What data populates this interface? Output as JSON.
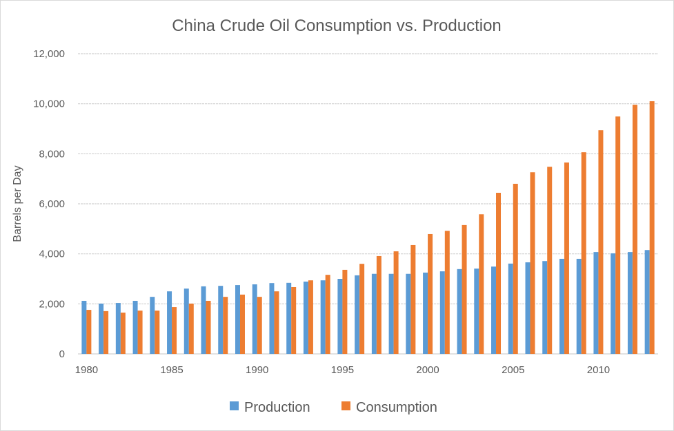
{
  "chart_data": {
    "type": "bar",
    "title": "China Crude Oil Consumption vs. Production",
    "xlabel": "",
    "ylabel": "Barrels per Day",
    "ylim": [
      0,
      12000
    ],
    "yticks": [
      "0",
      "2,000",
      "4,000",
      "6,000",
      "8,000",
      "10,000",
      "12,000"
    ],
    "ytick_values": [
      0,
      2000,
      4000,
      6000,
      8000,
      10000,
      12000
    ],
    "xtick_labels": [
      "1980",
      "1985",
      "1990",
      "1995",
      "2000",
      "2005",
      "2010"
    ],
    "grid": true,
    "legend_position": "bottom",
    "categories": [
      1980,
      1981,
      1982,
      1983,
      1984,
      1985,
      1986,
      1987,
      1988,
      1989,
      1990,
      1991,
      1992,
      1993,
      1994,
      1995,
      1996,
      1997,
      1998,
      1999,
      2000,
      2001,
      2002,
      2003,
      2004,
      2005,
      2006,
      2007,
      2008,
      2009,
      2010,
      2011,
      2012,
      2013
    ],
    "series": [
      {
        "name": "Production",
        "color": "#5b9bd5",
        "values": [
          2120,
          2010,
          2035,
          2120,
          2280,
          2500,
          2610,
          2700,
          2720,
          2750,
          2780,
          2830,
          2840,
          2890,
          2940,
          3000,
          3140,
          3200,
          3200,
          3200,
          3250,
          3300,
          3390,
          3410,
          3490,
          3610,
          3660,
          3710,
          3800,
          3800,
          4070,
          4020,
          4070,
          4150
        ]
      },
      {
        "name": "Consumption",
        "color": "#ed7d31",
        "values": [
          1760,
          1710,
          1650,
          1730,
          1730,
          1870,
          2010,
          2120,
          2280,
          2370,
          2280,
          2500,
          2670,
          2940,
          3160,
          3360,
          3600,
          3910,
          4100,
          4350,
          4790,
          4920,
          5150,
          5580,
          6440,
          6800,
          7260,
          7480,
          7650,
          8060,
          8940,
          9490,
          9960,
          10100
        ]
      }
    ]
  }
}
